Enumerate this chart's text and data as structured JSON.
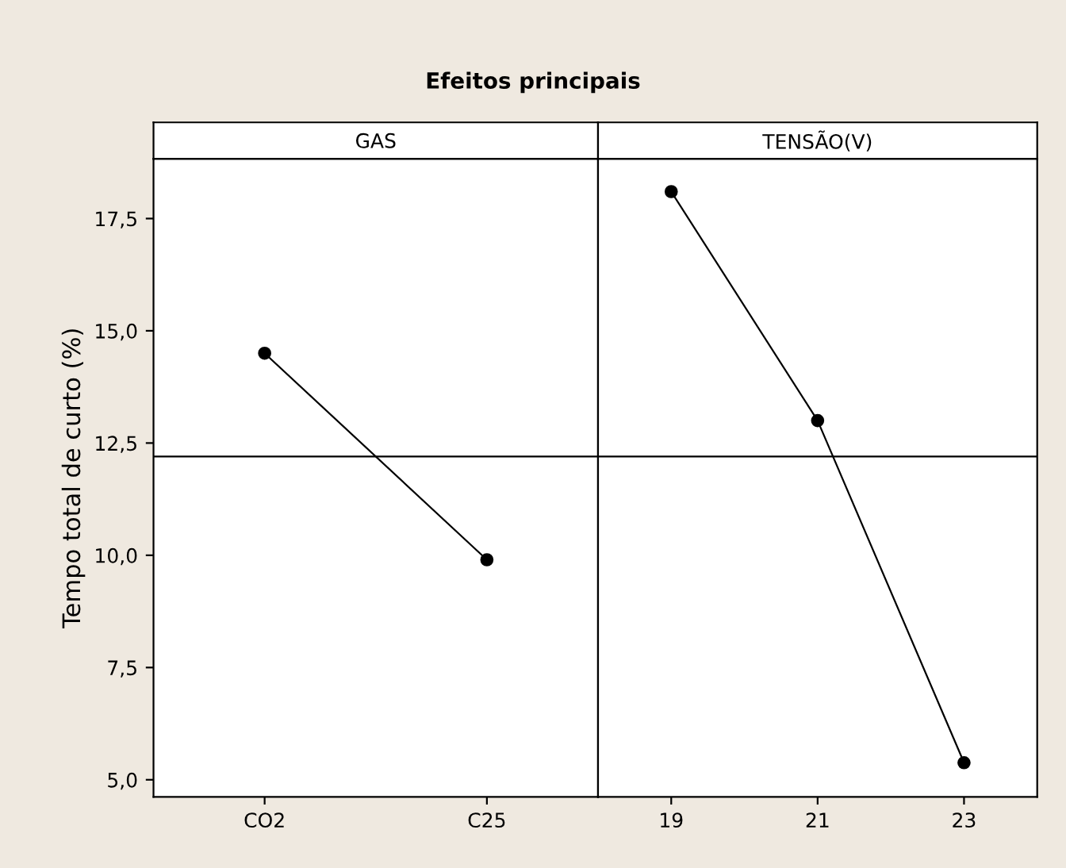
{
  "chart_data": [
    {
      "type": "line",
      "title": "Efeitos principais",
      "subtitle": "GAS",
      "ylabel": "Tempo total de curto (%)",
      "categories": [
        "CO2",
        "C25"
      ],
      "series": [
        {
          "color": "#000000",
          "values": [
            14.5,
            9.9
          ]
        }
      ],
      "ylim": [
        4.62,
        18.83
      ],
      "yticks": [
        {
          "value": 5.0,
          "label": "5,0"
        },
        {
          "value": 7.5,
          "label": "7,5"
        },
        {
          "value": 10.0,
          "label": "10,0"
        },
        {
          "value": 12.5,
          "label": "12,5"
        },
        {
          "value": 15.0,
          "label": "15,0"
        },
        {
          "value": 17.5,
          "label": "17,5"
        }
      ],
      "ref_lines": [
        {
          "axis": "y",
          "value": 12.2,
          "color": "#000000"
        }
      ],
      "marker": "circle",
      "line_style": "solid",
      "grid": false
    },
    {
      "type": "line",
      "subtitle": "TENSÃO(V)",
      "x": [
        19,
        21,
        23
      ],
      "series": [
        {
          "color": "#000000",
          "values": [
            18.1,
            13.0,
            5.38
          ]
        }
      ],
      "xlim": [
        18.0,
        24.0
      ],
      "xticks": [
        19,
        21,
        23
      ],
      "ylim": [
        4.62,
        18.83
      ],
      "tick_labels": "x",
      "ref_lines": [
        {
          "axis": "y",
          "value": 12.2,
          "color": "#000000"
        }
      ],
      "marker": "circle",
      "line_style": "solid",
      "grid": false
    }
  ]
}
